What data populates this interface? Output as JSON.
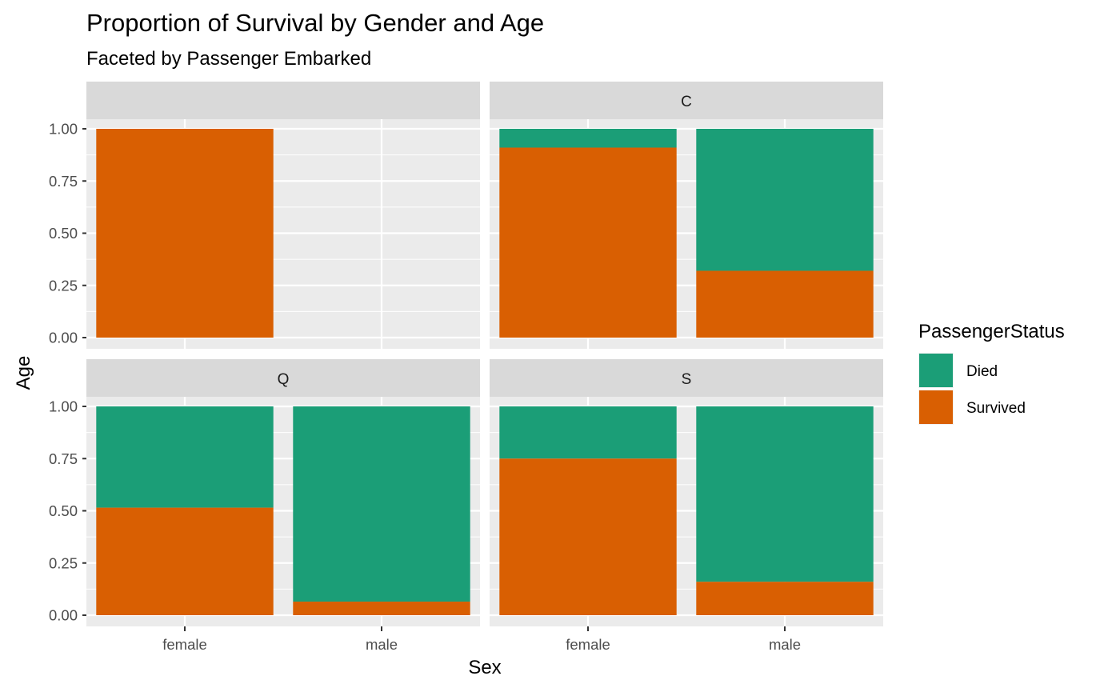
{
  "chart_data": {
    "type": "bar",
    "stacked": true,
    "position": "fill",
    "title": "Proportion of Survival by Gender and Age",
    "subtitle": "Faceted by Passenger Embarked",
    "xlabel": "Sex",
    "ylabel": "Age",
    "ylim": [
      0,
      1
    ],
    "yticks": [
      "0.00",
      "0.25",
      "0.50",
      "0.75",
      "1.00"
    ],
    "categories": [
      "female",
      "male"
    ],
    "legend": {
      "title": "PassengerStatus",
      "position": "right",
      "entries": [
        {
          "name": "Died",
          "color": "#1B9E77"
        },
        {
          "name": "Survived",
          "color": "#D95F02"
        }
      ]
    },
    "grid": true,
    "panel_background": "#EBEBEB",
    "strip_background": "#D9D9D9",
    "facets": [
      {
        "label": "",
        "bars": [
          {
            "category": "female",
            "survived": 1.0,
            "died": 0.0
          }
        ]
      },
      {
        "label": "C",
        "bars": [
          {
            "category": "female",
            "survived": 0.91,
            "died": 0.09
          },
          {
            "category": "male",
            "survived": 0.32,
            "died": 0.68
          }
        ]
      },
      {
        "label": "Q",
        "bars": [
          {
            "category": "female",
            "survived": 0.515,
            "died": 0.485
          },
          {
            "category": "male",
            "survived": 0.065,
            "died": 0.935
          }
        ]
      },
      {
        "label": "S",
        "bars": [
          {
            "category": "female",
            "survived": 0.75,
            "died": 0.25
          },
          {
            "category": "male",
            "survived": 0.16,
            "died": 0.84
          }
        ]
      }
    ]
  }
}
